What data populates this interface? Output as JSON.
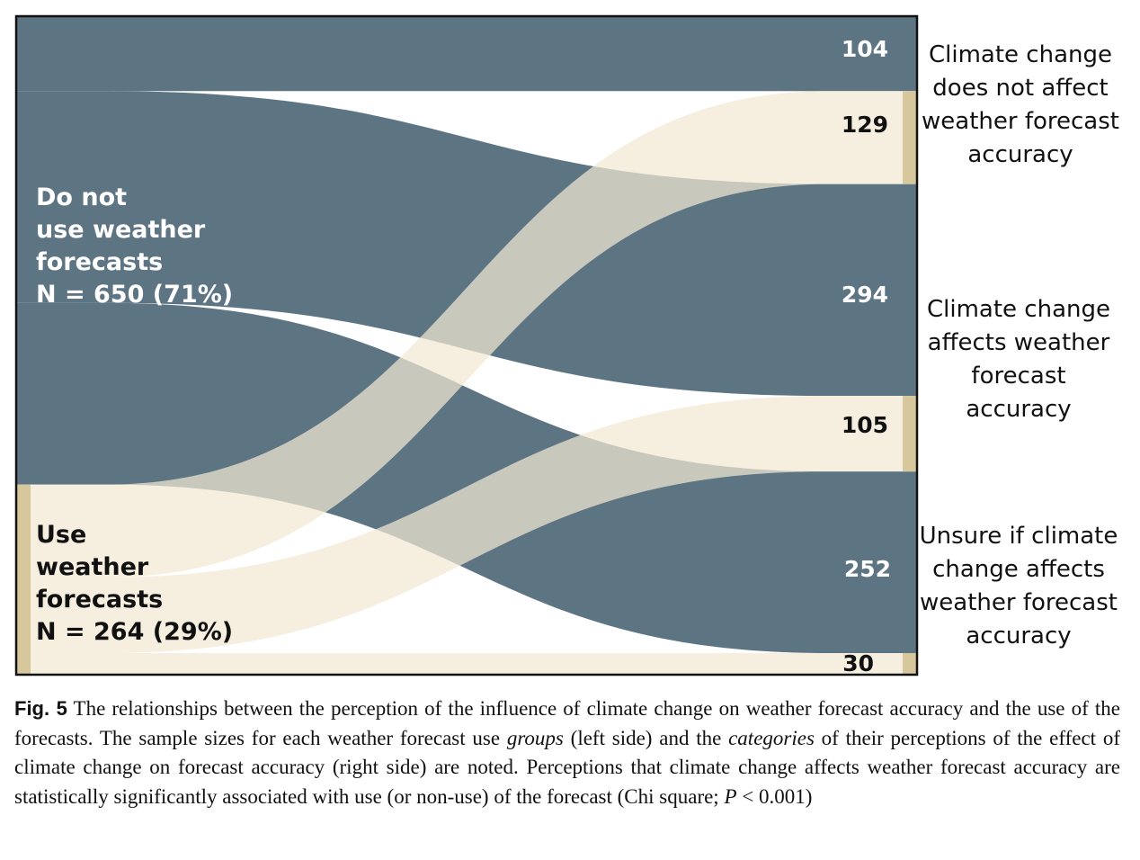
{
  "colors": {
    "no_use": "#5d7483",
    "use": "#f2e9d3",
    "use_edge": "#d7c79d",
    "frame": "#111111"
  },
  "left_groups": [
    {
      "key": "no_use",
      "label": "Do not\nuse weather\nforecasts\nN = 650 (71%)",
      "n": 650
    },
    {
      "key": "use",
      "label": "Use\nweather\nforecasts\nN = 264 (29%)",
      "n": 264
    }
  ],
  "right_categories": [
    {
      "label": "Climate change\ndoes not affect\nweather forecast\naccuracy",
      "no_use_count": "104",
      "use_count": "129"
    },
    {
      "label": "Climate change\naffects weather\nforecast accuracy",
      "no_use_count": "294",
      "use_count": "105"
    },
    {
      "label": "Unsure if climate\nchange affects\nweather forecast\naccuracy",
      "no_use_count": "252",
      "use_count": "30"
    }
  ],
  "flows": {
    "no_use": [
      104,
      294,
      252
    ],
    "use": [
      129,
      105,
      30
    ]
  },
  "caption": {
    "fig_label": "Fig. 5",
    "text_1": "The relationships between the perception of the influence of climate change on weather forecast accuracy and the use of the forecasts. The sample sizes for each weather forecast use ",
    "em_1": "groups",
    "text_2": " (left side) and the ",
    "em_2": "categories",
    "text_3": " of their perceptions of the effect of climate change on forecast accuracy (right side) are noted. Perceptions that climate change affects weather forecast accuracy are statistically significantly associated with use (or non-use) of the forecast (Chi square; ",
    "em_3": "P",
    "text_4": " < 0.001)"
  }
}
